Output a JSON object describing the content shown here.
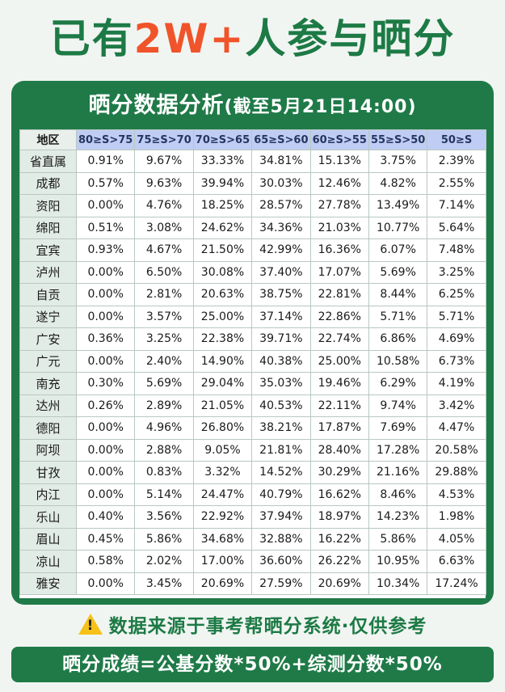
{
  "headline": {
    "before": "已有",
    "accent": "2W+",
    "after": "人参与晒分"
  },
  "card": {
    "title": "晒分数据分析",
    "subtitle": "(截至5月21日14:00)"
  },
  "table": {
    "headers": [
      "地区",
      "80≥S>75",
      "75≥S>70",
      "70≥S>65",
      "65≥S>60",
      "60≥S>55",
      "55≥S>50",
      "50≥S"
    ],
    "rows": [
      [
        "省直属",
        "0.91%",
        "9.67%",
        "33.33%",
        "34.81%",
        "15.13%",
        "3.75%",
        "2.39%"
      ],
      [
        "成都",
        "0.57%",
        "9.63%",
        "39.94%",
        "30.03%",
        "12.46%",
        "4.82%",
        "2.55%"
      ],
      [
        "资阳",
        "0.00%",
        "4.76%",
        "18.25%",
        "28.57%",
        "27.78%",
        "13.49%",
        "7.14%"
      ],
      [
        "绵阳",
        "0.51%",
        "3.08%",
        "24.62%",
        "34.36%",
        "21.03%",
        "10.77%",
        "5.64%"
      ],
      [
        "宜宾",
        "0.93%",
        "4.67%",
        "21.50%",
        "42.99%",
        "16.36%",
        "6.07%",
        "7.48%"
      ],
      [
        "泸州",
        "0.00%",
        "6.50%",
        "30.08%",
        "37.40%",
        "17.07%",
        "5.69%",
        "3.25%"
      ],
      [
        "自贡",
        "0.00%",
        "2.81%",
        "20.63%",
        "38.75%",
        "22.81%",
        "8.44%",
        "6.25%"
      ],
      [
        "遂宁",
        "0.00%",
        "3.57%",
        "25.00%",
        "37.14%",
        "22.86%",
        "5.71%",
        "5.71%"
      ],
      [
        "广安",
        "0.36%",
        "3.25%",
        "22.38%",
        "39.71%",
        "22.74%",
        "6.86%",
        "4.69%"
      ],
      [
        "广元",
        "0.00%",
        "2.40%",
        "14.90%",
        "40.38%",
        "25.00%",
        "10.58%",
        "6.73%"
      ],
      [
        "南充",
        "0.30%",
        "5.69%",
        "29.04%",
        "35.03%",
        "19.46%",
        "6.29%",
        "4.19%"
      ],
      [
        "达州",
        "0.26%",
        "2.89%",
        "21.05%",
        "40.53%",
        "22.11%",
        "9.74%",
        "3.42%"
      ],
      [
        "德阳",
        "0.00%",
        "4.96%",
        "26.80%",
        "38.21%",
        "17.87%",
        "7.69%",
        "4.47%"
      ],
      [
        "阿坝",
        "0.00%",
        "2.88%",
        "9.05%",
        "21.81%",
        "28.40%",
        "17.28%",
        "20.58%"
      ],
      [
        "甘孜",
        "0.00%",
        "0.83%",
        "3.32%",
        "14.52%",
        "30.29%",
        "21.16%",
        "29.88%"
      ],
      [
        "内江",
        "0.00%",
        "5.14%",
        "24.47%",
        "40.79%",
        "16.62%",
        "8.46%",
        "4.53%"
      ],
      [
        "乐山",
        "0.40%",
        "3.56%",
        "22.92%",
        "37.94%",
        "18.97%",
        "14.23%",
        "1.98%"
      ],
      [
        "眉山",
        "0.45%",
        "5.86%",
        "34.68%",
        "32.88%",
        "16.22%",
        "5.86%",
        "4.05%"
      ],
      [
        "凉山",
        "0.58%",
        "2.02%",
        "17.00%",
        "36.60%",
        "26.22%",
        "10.95%",
        "6.63%"
      ],
      [
        "雅安",
        "0.00%",
        "3.45%",
        "20.69%",
        "27.59%",
        "20.69%",
        "10.34%",
        "17.24%"
      ]
    ]
  },
  "notice": {
    "icon": "warning-icon",
    "text": "数据来源于事考帮晒分系统·仅供参考"
  },
  "formula": {
    "text": "晒分成绩=公基分数*50%+综测分数*50%"
  },
  "colors": {
    "brand_green": "#1f7a48",
    "accent_orange": "#f0542a",
    "header_blue": "#bfcdf4",
    "warning_yellow": "#f6c21a"
  }
}
